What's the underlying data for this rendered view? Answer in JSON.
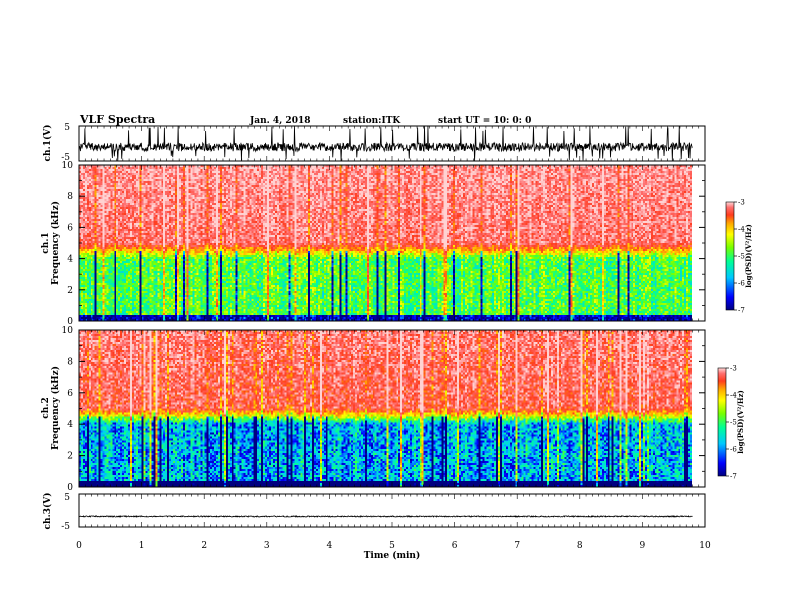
{
  "header": {
    "title": "VLF Spectra",
    "date": "Jan. 4, 2018",
    "station": "station:ITK",
    "start_time": "start UT = 10: 0: 0"
  },
  "chart_data": [
    {
      "type": "line",
      "panel": "ch1-waveform",
      "ylabel": "ch.1(V)",
      "ylim": [
        -5,
        5
      ],
      "yticks": [
        "5",
        "-5"
      ],
      "xlim": [
        0,
        10
      ],
      "baseline": -1,
      "color": "#000000",
      "description_of_signal": null
    },
    {
      "type": "heatmap",
      "panel": "ch1-spectrogram",
      "ylabel_lines": [
        "ch.1",
        "Frequency (kHz)"
      ],
      "ylim": [
        0,
        10
      ],
      "yticks": [
        "0",
        "2",
        "4",
        "6",
        "8",
        "10"
      ],
      "xlim": [
        0,
        10
      ],
      "data_end_min": 9.8,
      "colorbar": {
        "label": "log(PSD)(V²/Hz)",
        "range": [
          -7,
          -3
        ],
        "ticks": [
          "-3",
          "-4",
          "-5",
          "-6",
          "-7"
        ]
      }
    },
    {
      "type": "heatmap",
      "panel": "ch2-spectrogram",
      "ylabel_lines": [
        "ch.2",
        "Frequency (kHz)"
      ],
      "ylim": [
        0,
        10
      ],
      "yticks": [
        "0",
        "2",
        "4",
        "6",
        "8",
        "10"
      ],
      "xlim": [
        0,
        10
      ],
      "data_end_min": 9.8,
      "colorbar": {
        "label": "log(PSD)(V²/Hz)",
        "range": [
          -7,
          -3
        ],
        "ticks": [
          "-3",
          "-4",
          "-5",
          "-6",
          "-7"
        ]
      }
    },
    {
      "type": "line",
      "panel": "ch3-waveform",
      "ylabel": "ch.3(V)",
      "ylim": [
        -5,
        5
      ],
      "yticks": [
        "5",
        "-5"
      ],
      "xlim": [
        0,
        10
      ],
      "baseline": -1.8,
      "color": "#000000"
    }
  ],
  "xaxis": {
    "label": "Time (min)",
    "ticks": [
      "0",
      "1",
      "2",
      "3",
      "4",
      "5",
      "6",
      "7",
      "8",
      "9",
      "10"
    ]
  },
  "colors": {
    "colormap": [
      "#000080",
      "#0000ff",
      "#00c8ff",
      "#00ff96",
      "#78ff00",
      "#ffff00",
      "#ffaa00",
      "#ff3c1e",
      "#ff6e6e",
      "#ffd2d2"
    ]
  }
}
